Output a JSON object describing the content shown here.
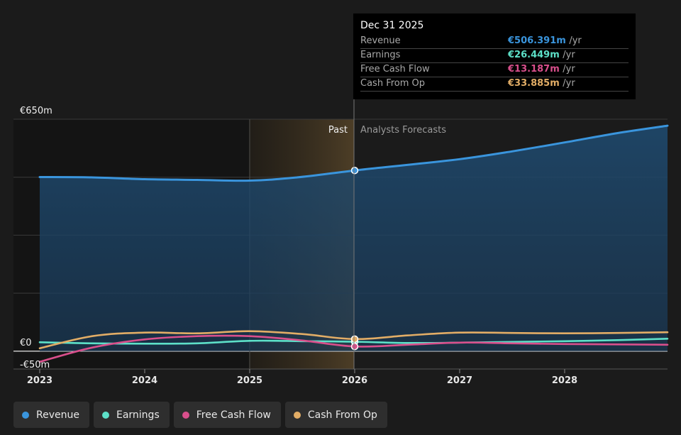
{
  "chart_data": {
    "type": "line",
    "x_axis": {
      "ticks": [
        "2023",
        "2024",
        "2025",
        "2026",
        "2027",
        "2028"
      ],
      "range": [
        2022.75,
        2028.98
      ]
    },
    "y_axis": {
      "tick_labels": [
        "€650m",
        "€0",
        "-€50m"
      ],
      "range": [
        -50,
        650
      ]
    },
    "regions": {
      "past_label": "Past",
      "forecast_label": "Analysts Forecasts",
      "divider_x": 2026.0,
      "highlight_start_x": 2025.0
    },
    "series": [
      {
        "name": "Revenue",
        "color": "#3a95dd",
        "fill": true,
        "points": [
          [
            2023.0,
            488
          ],
          [
            2023.5,
            487
          ],
          [
            2024.0,
            482
          ],
          [
            2024.5,
            480
          ],
          [
            2025.0,
            478
          ],
          [
            2025.45,
            487
          ],
          [
            2026.0,
            506.391
          ],
          [
            2026.5,
            522
          ],
          [
            2027.0,
            538
          ],
          [
            2027.5,
            560
          ],
          [
            2028.0,
            585
          ],
          [
            2028.5,
            611
          ],
          [
            2028.98,
            632
          ]
        ]
      },
      {
        "name": "Earnings",
        "color": "#5de0c8",
        "points": [
          [
            2023.0,
            25
          ],
          [
            2023.5,
            22
          ],
          [
            2024.0,
            21
          ],
          [
            2024.5,
            22
          ],
          [
            2025.0,
            29
          ],
          [
            2025.5,
            28
          ],
          [
            2026.0,
            26.449
          ],
          [
            2026.5,
            23
          ],
          [
            2027.0,
            24
          ],
          [
            2027.5,
            26
          ],
          [
            2028.0,
            28
          ],
          [
            2028.5,
            31
          ],
          [
            2028.98,
            35
          ]
        ]
      },
      {
        "name": "Free Cash Flow",
        "color": "#d94f8c",
        "points": [
          [
            2023.0,
            -30
          ],
          [
            2023.5,
            10
          ],
          [
            2024.0,
            33
          ],
          [
            2024.5,
            42
          ],
          [
            2025.0,
            42
          ],
          [
            2025.5,
            30
          ],
          [
            2026.0,
            13.187
          ],
          [
            2026.5,
            18
          ],
          [
            2027.0,
            24
          ],
          [
            2027.5,
            22
          ],
          [
            2028.0,
            20
          ],
          [
            2028.5,
            19
          ],
          [
            2028.98,
            18
          ]
        ]
      },
      {
        "name": "Cash From Op",
        "color": "#e2ad66",
        "points": [
          [
            2023.0,
            8
          ],
          [
            2023.5,
            42
          ],
          [
            2024.0,
            52
          ],
          [
            2024.5,
            50
          ],
          [
            2025.0,
            56
          ],
          [
            2025.5,
            48
          ],
          [
            2026.0,
            33.885
          ],
          [
            2026.5,
            44
          ],
          [
            2027.0,
            52
          ],
          [
            2027.5,
            51
          ],
          [
            2028.0,
            50
          ],
          [
            2028.5,
            51
          ],
          [
            2028.98,
            53
          ]
        ]
      }
    ],
    "highlight_x": 2026.0,
    "grid": true,
    "legend_placement": "bottom-left"
  },
  "tooltip": {
    "date": "Dec 31 2025",
    "rows": [
      {
        "label": "Revenue",
        "value": "€506.391m",
        "unit": "/yr",
        "color": "#3a95dd"
      },
      {
        "label": "Earnings",
        "value": "€26.449m",
        "unit": "/yr",
        "color": "#5de0c8"
      },
      {
        "label": "Free Cash Flow",
        "value": "€13.187m",
        "unit": "/yr",
        "color": "#d94f8c"
      },
      {
        "label": "Cash From Op",
        "value": "€33.885m",
        "unit": "/yr",
        "color": "#e2ad66"
      }
    ]
  },
  "legend": [
    {
      "label": "Revenue",
      "color": "#3a95dd"
    },
    {
      "label": "Earnings",
      "color": "#5de0c8"
    },
    {
      "label": "Free Cash Flow",
      "color": "#d94f8c"
    },
    {
      "label": "Cash From Op",
      "color": "#e2ad66"
    }
  ]
}
